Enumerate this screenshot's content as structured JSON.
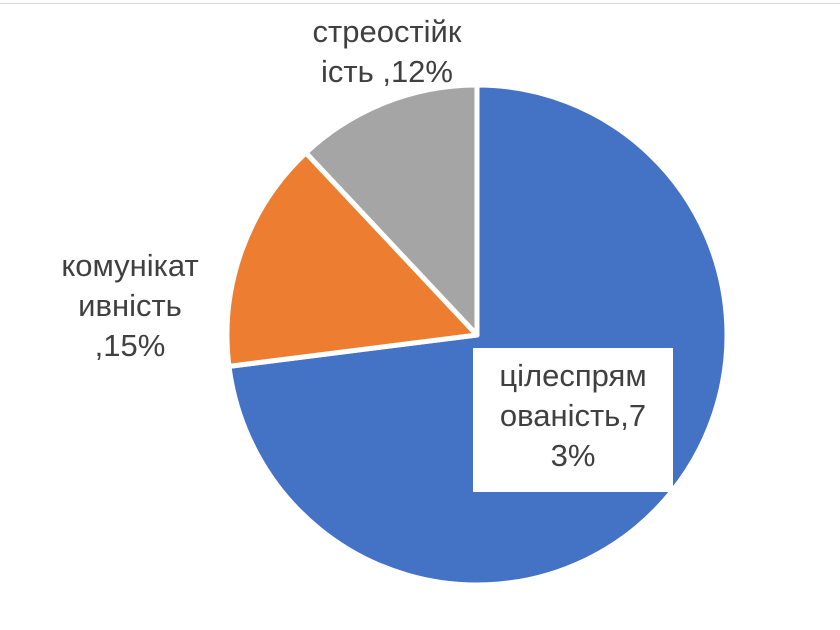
{
  "chart_data": {
    "type": "pie",
    "title": "",
    "slices": [
      {
        "label": "цілеспрямованість",
        "value": 73,
        "color": "#4472C4"
      },
      {
        "label": "комунікативність",
        "value": 15,
        "color": "#ED7D31"
      },
      {
        "label": "стреостійкість",
        "value": 12,
        "color": "#A5A5A5"
      }
    ],
    "data_labels": [
      {
        "lines": [
          "цілеспрям",
          "ованість,7",
          "3%"
        ]
      },
      {
        "lines": [
          "комунікат",
          "ивність",
          ",15%"
        ]
      },
      {
        "lines": [
          "стреостійк",
          "ість ,12%"
        ]
      }
    ],
    "start": "12 o'clock",
    "direction": "clockwise",
    "legend": "none"
  }
}
